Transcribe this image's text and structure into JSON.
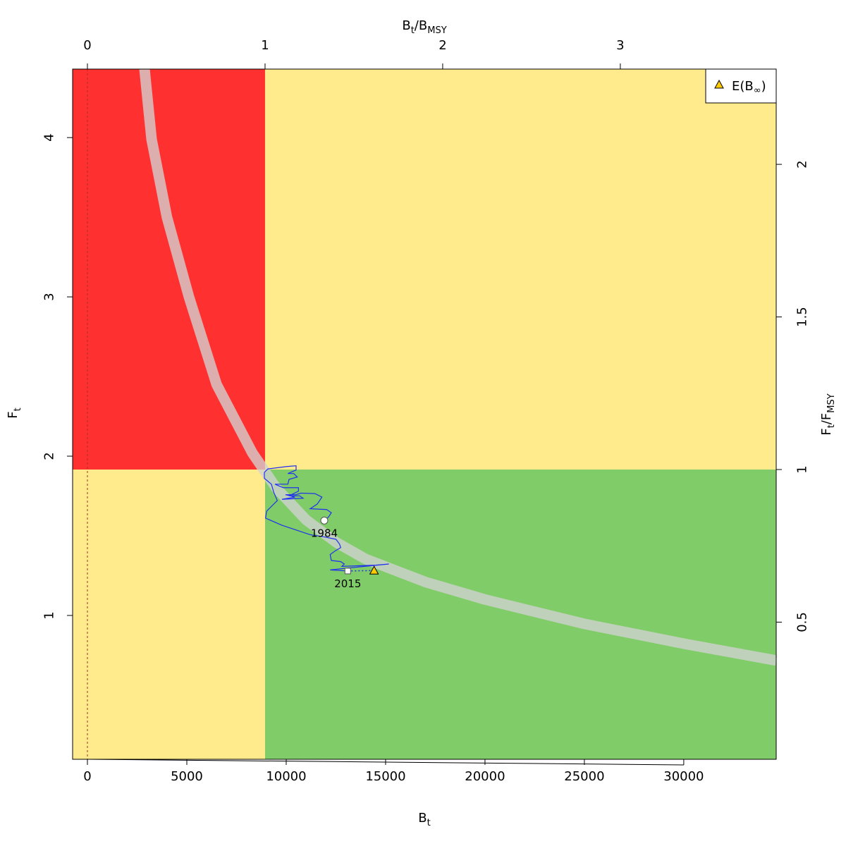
{
  "chart_data": {
    "type": "line",
    "title": "",
    "xlabel": {
      "main": "B",
      "sub": "t"
    },
    "ylabel": {
      "main": "F",
      "sub": "t"
    },
    "top_label": {
      "main": "B",
      "sub": "t",
      "sep": "/",
      "main2": "B",
      "sub2": "MSY"
    },
    "right_label": {
      "main": "F",
      "sub": "t",
      "sep": "/",
      "main2": "F",
      "sub2": "MSY"
    },
    "xlim": [
      -745,
      34650
    ],
    "ylim": [
      0.097,
      4.43
    ],
    "Bmsy": 8936,
    "Fmsy": 1.916,
    "x_ticks": [
      0,
      5000,
      10000,
      15000,
      20000,
      25000,
      30000
    ],
    "y_ticks": [
      1,
      2,
      3,
      4
    ],
    "top_ticks": [
      0,
      1,
      2,
      3
    ],
    "right_ticks": [
      {
        "v": 0.5,
        "label": "0.5"
      },
      {
        "v": 1,
        "label": "1"
      },
      {
        "v": 1.5,
        "label": "1.5"
      },
      {
        "v": 2,
        "label": "2"
      }
    ],
    "zone_colors": {
      "red": "#ff3030",
      "yellow": "#ffeb8c",
      "green": "#80cc68"
    },
    "trajectory_color": "#2030ee",
    "msy_curve": [
      [
        2872,
        4.43
      ],
      [
        3227,
        3.99
      ],
      [
        4000,
        3.5
      ],
      [
        5106,
        3.0
      ],
      [
        6500,
        2.45
      ],
      [
        8298,
        2.02
      ],
      [
        9500,
        1.8
      ],
      [
        11000,
        1.6
      ],
      [
        12500,
        1.46
      ],
      [
        14000,
        1.354
      ],
      [
        17000,
        1.21
      ],
      [
        20000,
        1.1
      ],
      [
        25000,
        0.947
      ],
      [
        30000,
        0.823
      ],
      [
        34650,
        0.717
      ]
    ],
    "trajectory": [
      [
        11915,
        1.596
      ],
      [
        12128,
        1.618
      ],
      [
        12270,
        1.645
      ],
      [
        12033,
        1.665
      ],
      [
        11206,
        1.67
      ],
      [
        11560,
        1.699
      ],
      [
        11797,
        1.743
      ],
      [
        11442,
        1.765
      ],
      [
        10733,
        1.768
      ],
      [
        10497,
        1.758
      ],
      [
        9965,
        1.758
      ],
      [
        10438,
        1.743
      ],
      [
        9787,
        1.729
      ],
      [
        10851,
        1.736
      ],
      [
        10674,
        1.751
      ],
      [
        10142,
        1.751
      ],
      [
        10615,
        1.78
      ],
      [
        10615,
        1.802
      ],
      [
        9847,
        1.802
      ],
      [
        9433,
        1.824
      ],
      [
        10083,
        1.824
      ],
      [
        10142,
        1.854
      ],
      [
        10556,
        1.869
      ],
      [
        10378,
        1.891
      ],
      [
        10083,
        1.891
      ],
      [
        10497,
        1.913
      ],
      [
        10497,
        1.94
      ],
      [
        10024,
        1.935
      ],
      [
        9078,
        1.92
      ],
      [
        8901,
        1.898
      ],
      [
        8901,
        1.861
      ],
      [
        9256,
        1.824
      ],
      [
        9374,
        1.773
      ],
      [
        9551,
        1.721
      ],
      [
        9315,
        1.692
      ],
      [
        9019,
        1.655
      ],
      [
        8960,
        1.611
      ],
      [
        9787,
        1.566
      ],
      [
        11206,
        1.507
      ],
      [
        11915,
        1.493
      ],
      [
        12506,
        1.478
      ],
      [
        12683,
        1.448
      ],
      [
        12742,
        1.426
      ],
      [
        12447,
        1.404
      ],
      [
        12211,
        1.382
      ],
      [
        12270,
        1.345
      ],
      [
        12742,
        1.338
      ],
      [
        12920,
        1.323
      ],
      [
        12802,
        1.308
      ],
      [
        14515,
        1.316
      ],
      [
        15165,
        1.323
      ],
      [
        13925,
        1.308
      ],
      [
        12211,
        1.286
      ],
      [
        13097,
        1.279
      ]
    ],
    "start_point": {
      "label": "1984",
      "B": 11915,
      "F": 1.596
    },
    "end_point": {
      "label": "2015",
      "B": 13097,
      "F": 1.279
    },
    "E_Binf": {
      "B": 14421,
      "F": 1.282,
      "color": "#ffcc00"
    },
    "legend": {
      "placement": "top-right",
      "entries": [
        {
          "label": "E(B",
          "sub": "∞",
          "close": ")"
        }
      ]
    }
  }
}
